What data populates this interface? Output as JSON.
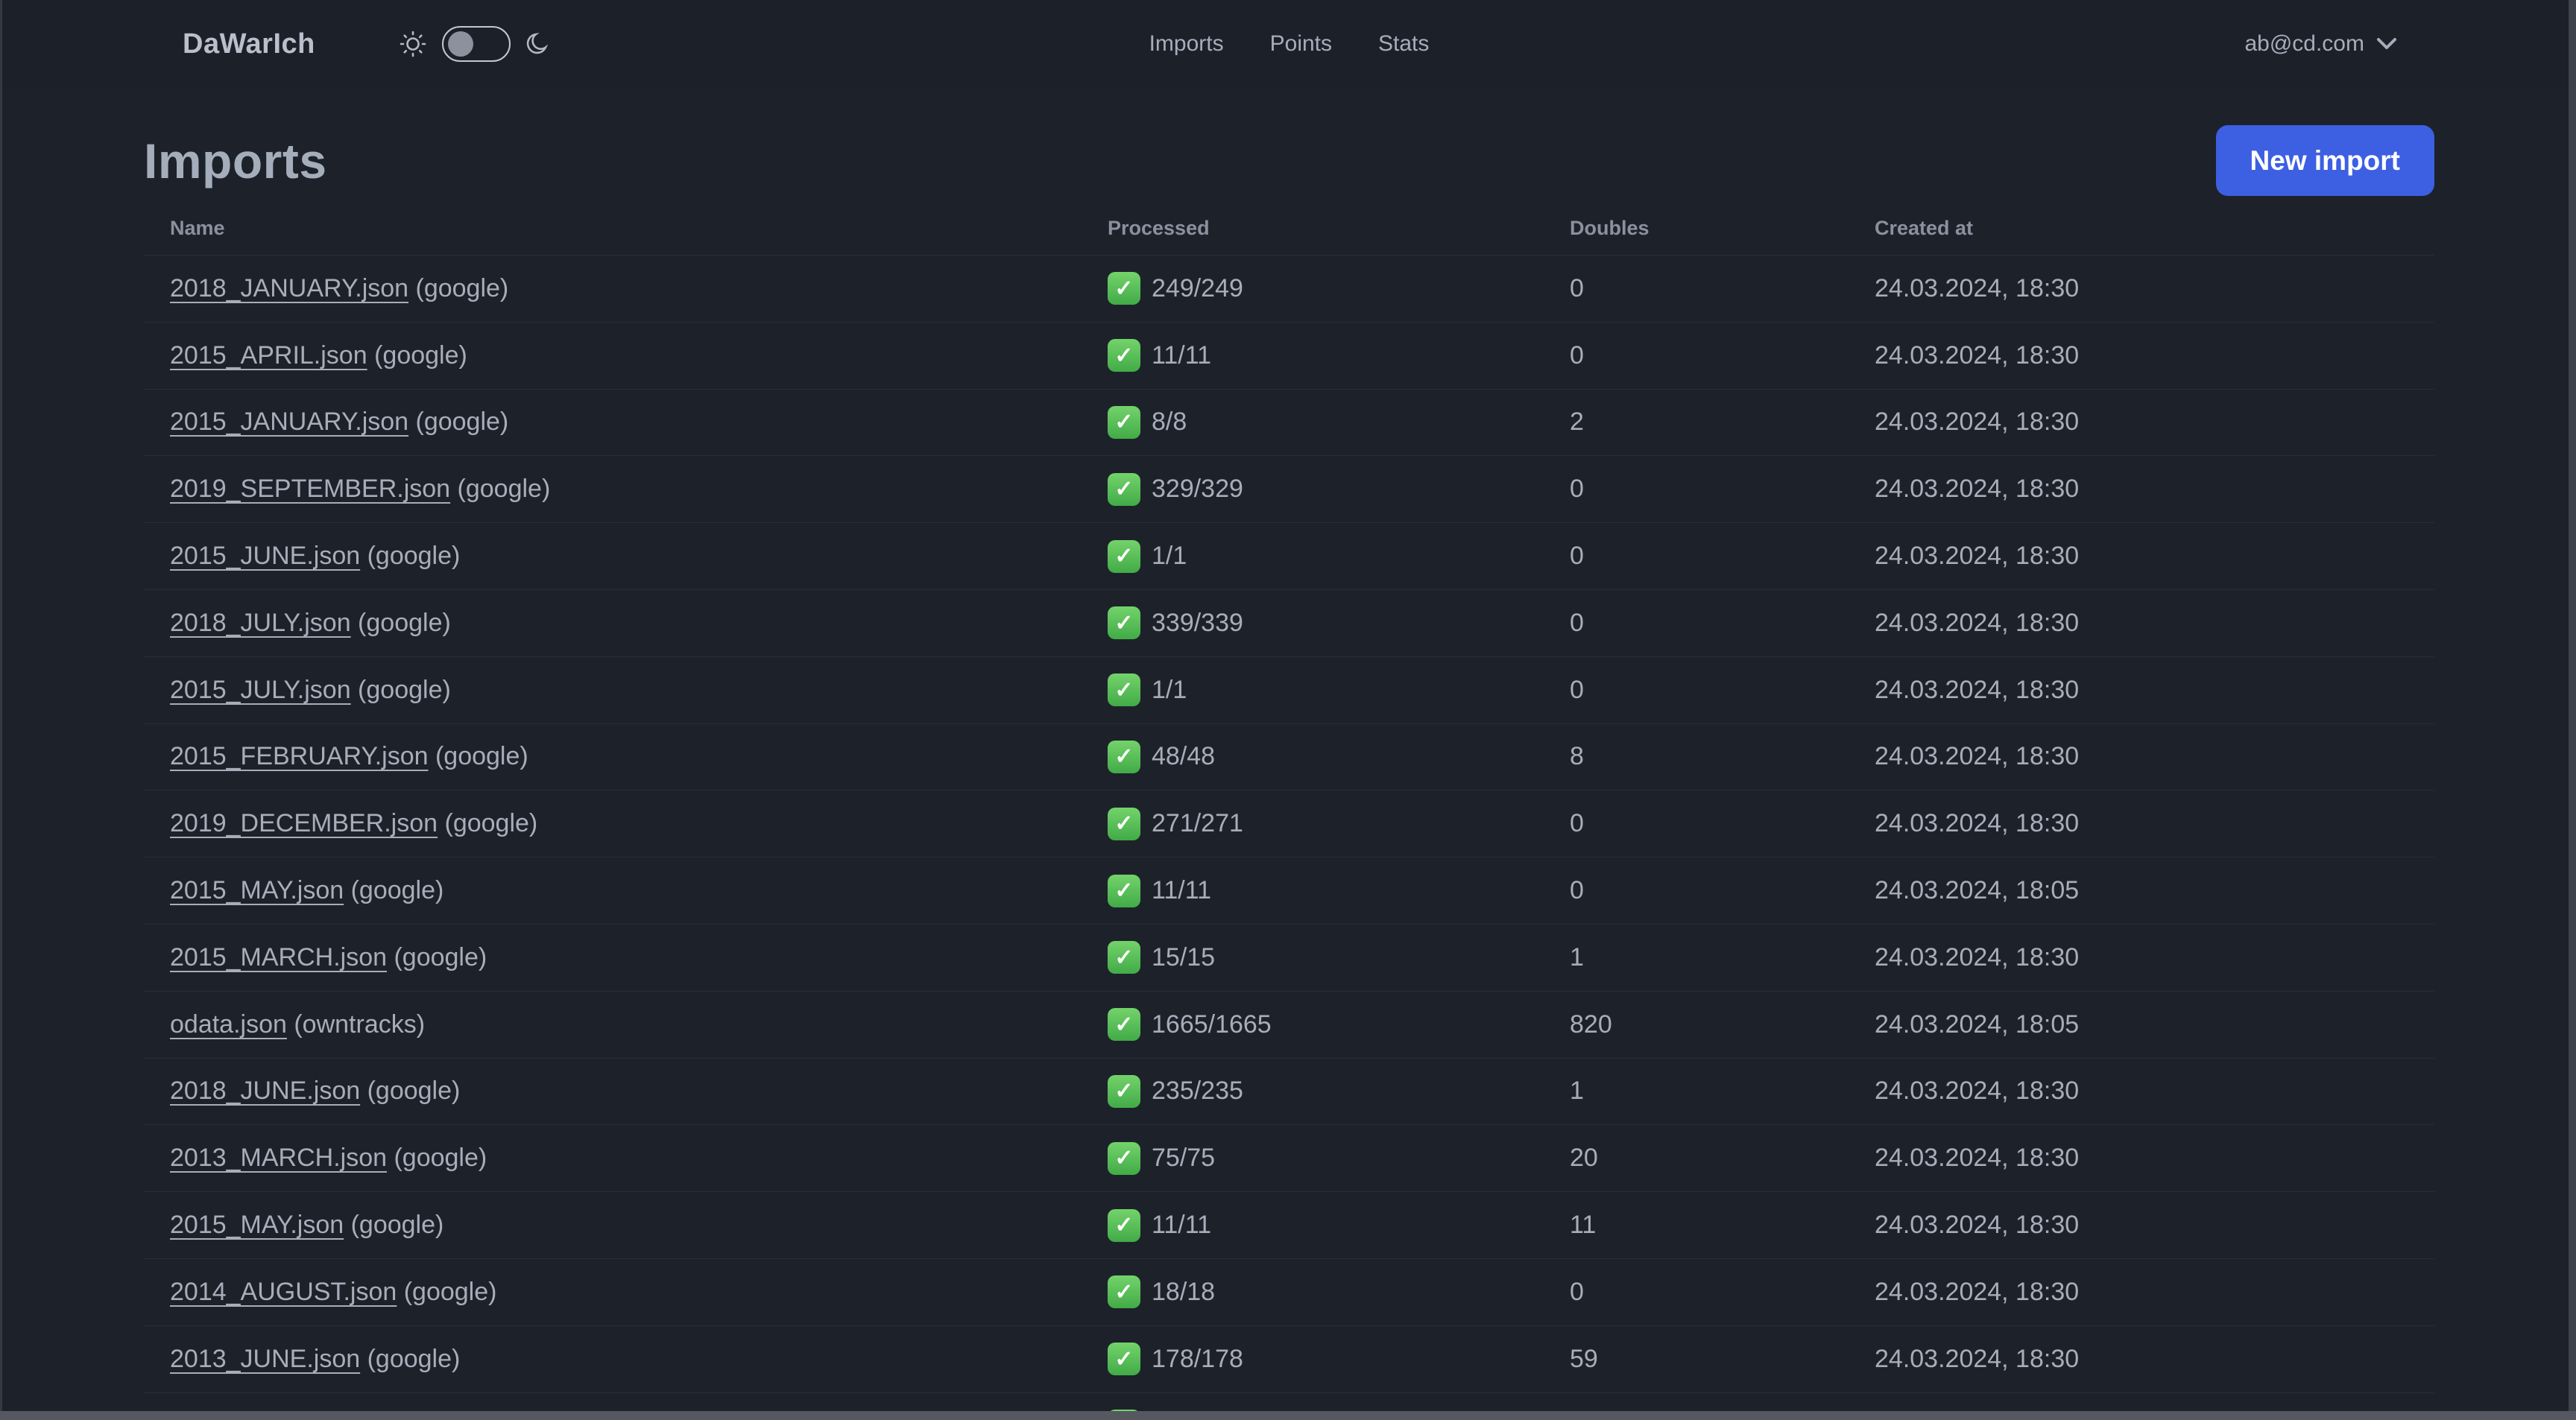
{
  "header": {
    "logo": "DaWarIch",
    "nav": [
      {
        "label": "Imports"
      },
      {
        "label": "Points"
      },
      {
        "label": "Stats"
      }
    ],
    "account": "ab@cd.com"
  },
  "page": {
    "title": "Imports",
    "new_import_label": "New import"
  },
  "table": {
    "columns": [
      "Name",
      "Processed",
      "Doubles",
      "Created at"
    ],
    "rows": [
      {
        "file": "2018_JANUARY.json",
        "source": "google",
        "processed": "249/249",
        "doubles": "0",
        "created": "24.03.2024, 18:30"
      },
      {
        "file": "2015_APRIL.json",
        "source": "google",
        "processed": "11/11",
        "doubles": "0",
        "created": "24.03.2024, 18:30"
      },
      {
        "file": "2015_JANUARY.json",
        "source": "google",
        "processed": "8/8",
        "doubles": "2",
        "created": "24.03.2024, 18:30"
      },
      {
        "file": "2019_SEPTEMBER.json",
        "source": "google",
        "processed": "329/329",
        "doubles": "0",
        "created": "24.03.2024, 18:30"
      },
      {
        "file": "2015_JUNE.json",
        "source": "google",
        "processed": "1/1",
        "doubles": "0",
        "created": "24.03.2024, 18:30"
      },
      {
        "file": "2018_JULY.json",
        "source": "google",
        "processed": "339/339",
        "doubles": "0",
        "created": "24.03.2024, 18:30"
      },
      {
        "file": "2015_JULY.json",
        "source": "google",
        "processed": "1/1",
        "doubles": "0",
        "created": "24.03.2024, 18:30"
      },
      {
        "file": "2015_FEBRUARY.json",
        "source": "google",
        "processed": "48/48",
        "doubles": "8",
        "created": "24.03.2024, 18:30"
      },
      {
        "file": "2019_DECEMBER.json",
        "source": "google",
        "processed": "271/271",
        "doubles": "0",
        "created": "24.03.2024, 18:30"
      },
      {
        "file": "2015_MAY.json",
        "source": "google",
        "processed": "11/11",
        "doubles": "0",
        "created": "24.03.2024, 18:05"
      },
      {
        "file": "2015_MARCH.json",
        "source": "google",
        "processed": "15/15",
        "doubles": "1",
        "created": "24.03.2024, 18:30"
      },
      {
        "file": "odata.json",
        "source": "owntracks",
        "processed": "1665/1665",
        "doubles": "820",
        "created": "24.03.2024, 18:05"
      },
      {
        "file": "2018_JUNE.json",
        "source": "google",
        "processed": "235/235",
        "doubles": "1",
        "created": "24.03.2024, 18:30"
      },
      {
        "file": "2013_MARCH.json",
        "source": "google",
        "processed": "75/75",
        "doubles": "20",
        "created": "24.03.2024, 18:30"
      },
      {
        "file": "2015_MAY.json",
        "source": "google",
        "processed": "11/11",
        "doubles": "11",
        "created": "24.03.2024, 18:30"
      },
      {
        "file": "2014_AUGUST.json",
        "source": "google",
        "processed": "18/18",
        "doubles": "0",
        "created": "24.03.2024, 18:30"
      },
      {
        "file": "2013_JUNE.json",
        "source": "google",
        "processed": "178/178",
        "doubles": "59",
        "created": "24.03.2024, 18:30"
      },
      {
        "file": "",
        "source": "",
        "processed": "",
        "doubles": "",
        "created": ""
      }
    ]
  },
  "icons": {
    "check": "✓",
    "sun": "sun-icon",
    "moon": "moon-icon",
    "chevron": "chevron-down-icon"
  },
  "colors": {
    "background": "#1d222a",
    "text": "#a6adbb",
    "accent_button": "#3d5fe2",
    "check_green": "#4db348"
  }
}
